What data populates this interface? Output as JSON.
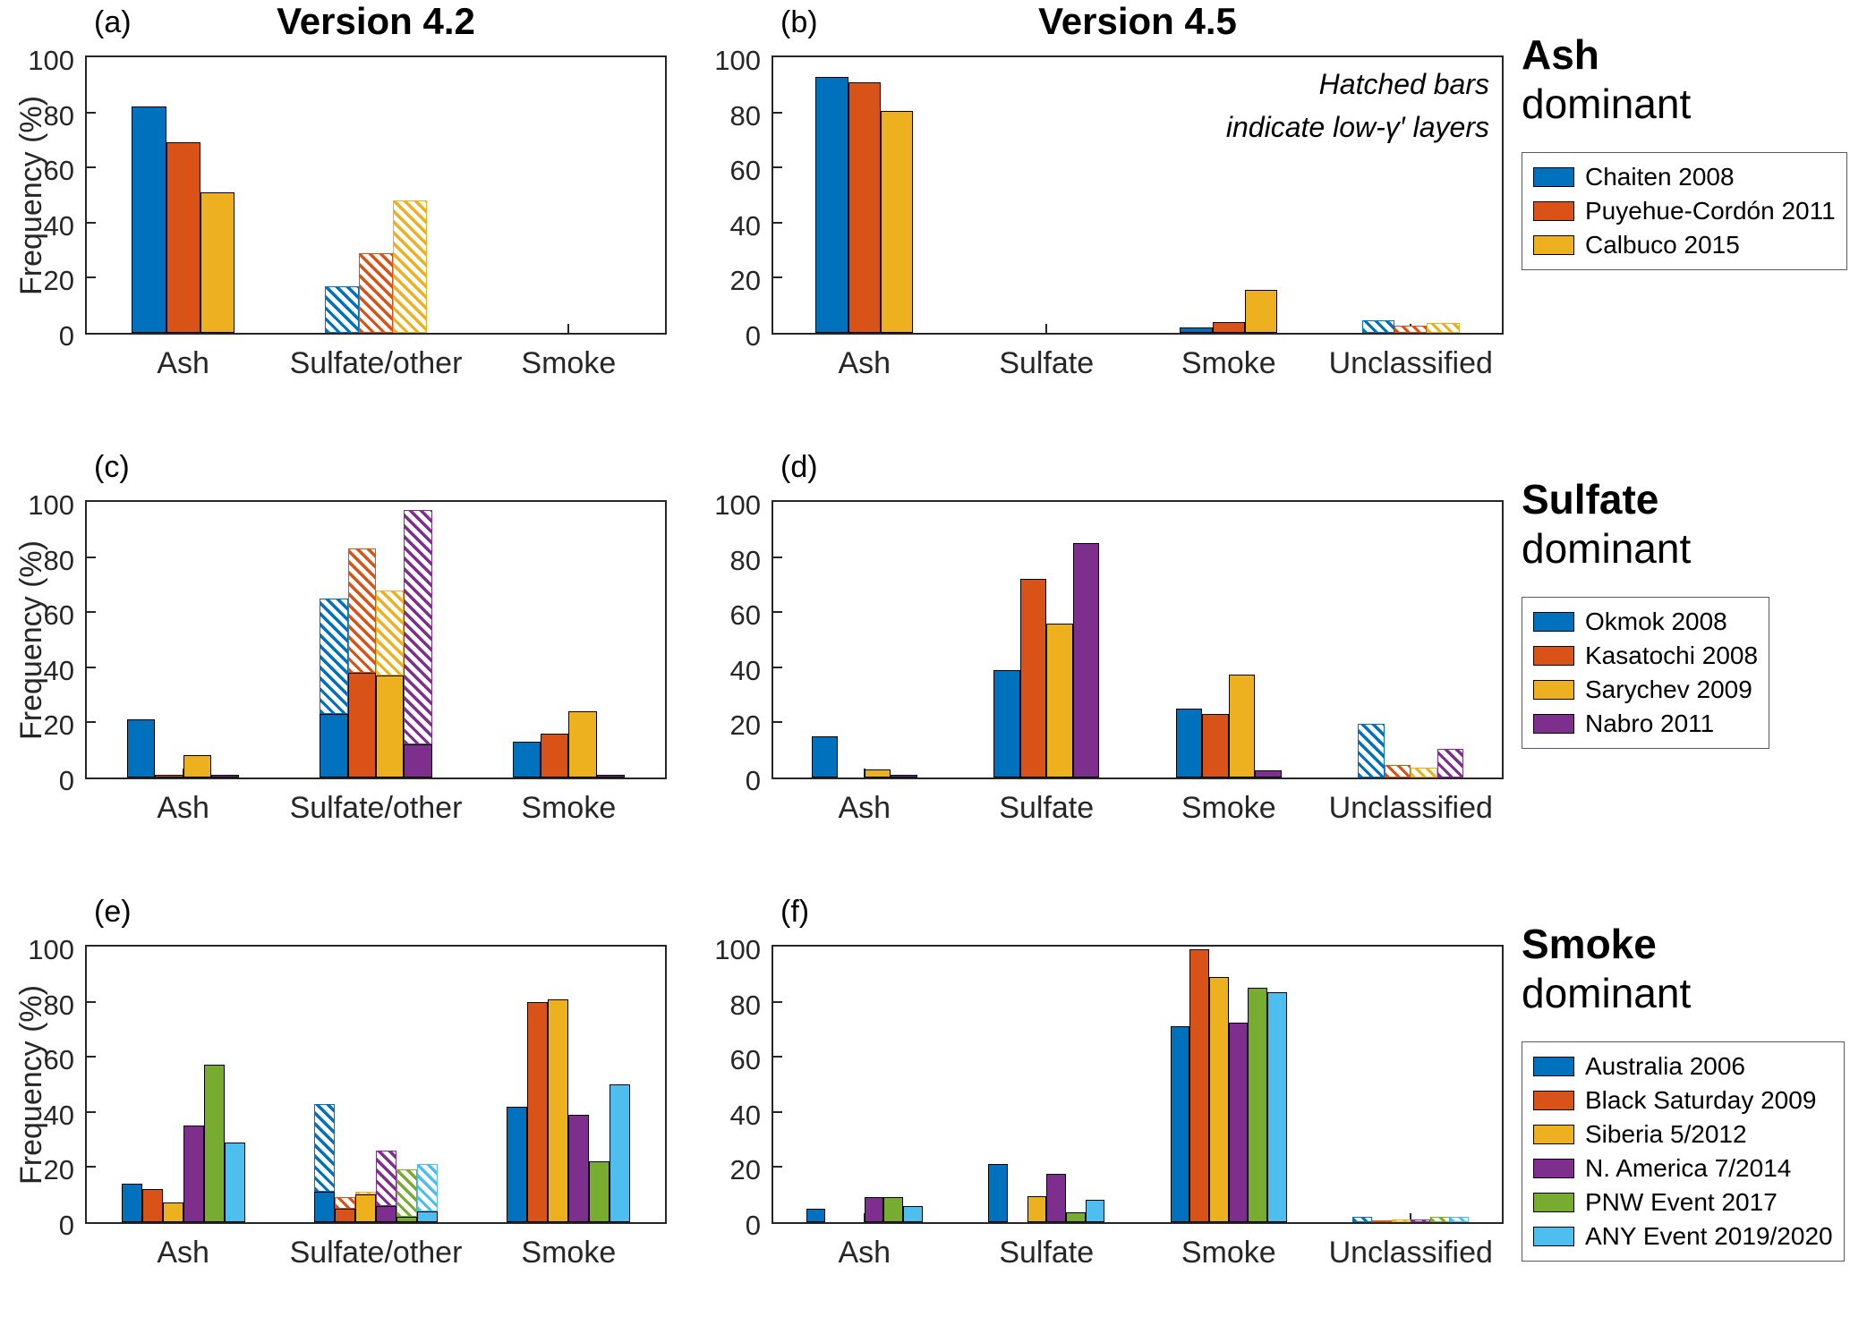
{
  "figure": {
    "ylabel": "Frequency (%)",
    "col_titles": [
      "Version 4.2",
      "Version 4.5"
    ]
  },
  "rows": [
    {
      "title_bold": "Ash",
      "title_rest": "dominant",
      "legend": [
        {
          "label": "Chaiten 2008",
          "color": "#0072BD"
        },
        {
          "label": "Puyehue-Cordón 2011",
          "color": "#D95319"
        },
        {
          "label": "Calbuco 2015",
          "color": "#EDB120"
        }
      ]
    },
    {
      "title_bold": "Sulfate",
      "title_rest": "dominant",
      "legend": [
        {
          "label": "Okmok 2008",
          "color": "#0072BD"
        },
        {
          "label": "Kasatochi 2008",
          "color": "#D95319"
        },
        {
          "label": "Sarychev 2009",
          "color": "#EDB120"
        },
        {
          "label": "Nabro 2011",
          "color": "#7E2F8E"
        }
      ]
    },
    {
      "title_bold": "Smoke",
      "title_rest": "dominant",
      "legend": [
        {
          "label": "Australia 2006",
          "color": "#0072BD"
        },
        {
          "label": "Black Saturday 2009",
          "color": "#D95319"
        },
        {
          "label": "Siberia 5/2012",
          "color": "#EDB120"
        },
        {
          "label": "N. America 7/2014",
          "color": "#7E2F8E"
        },
        {
          "label": "PNW Event 2017",
          "color": "#77AC30"
        },
        {
          "label": "ANY Event 2019/2020",
          "color": "#4DBEEE"
        }
      ]
    }
  ],
  "chart_data": [
    {
      "id": "a",
      "panel_tag": "(a)",
      "type": "bar",
      "categories": [
        "Ash",
        "Sulfate/other",
        "Smoke"
      ],
      "ylim": [
        0,
        100
      ],
      "yticks": [
        0,
        20,
        40,
        60,
        80,
        100
      ],
      "hatch_note": "hatched values indicate low-gamma-prime layers",
      "series": [
        {
          "name": "Chaiten 2008",
          "color": "#0072BD",
          "solid": [
            82,
            0,
            0
          ],
          "hatched": [
            0,
            17,
            0
          ]
        },
        {
          "name": "Puyehue-Cordón 2011",
          "color": "#D95319",
          "solid": [
            69,
            0,
            0
          ],
          "hatched": [
            0,
            29,
            0
          ]
        },
        {
          "name": "Calbuco 2015",
          "color": "#EDB120",
          "solid": [
            51,
            0,
            0
          ],
          "hatched": [
            0,
            48,
            0
          ]
        }
      ]
    },
    {
      "id": "b",
      "panel_tag": "(b)",
      "type": "bar",
      "categories": [
        "Ash",
        "Sulfate",
        "Smoke",
        "Unclassified"
      ],
      "ylim": [
        0,
        100
      ],
      "yticks": [
        0,
        20,
        40,
        60,
        80,
        100
      ],
      "annotation": [
        "Hatched bars",
        "indicate low-γ′ layers"
      ],
      "series": [
        {
          "name": "Chaiten 2008",
          "color": "#0072BD",
          "solid": [
            93,
            0,
            2,
            0
          ],
          "hatched": [
            0,
            0,
            0,
            4.5
          ]
        },
        {
          "name": "Puyehue-Cordón 2011",
          "color": "#D95319",
          "solid": [
            91,
            0,
            4,
            0
          ],
          "hatched": [
            0,
            0,
            0,
            2.5
          ]
        },
        {
          "name": "Calbuco 2015",
          "color": "#EDB120",
          "solid": [
            80.5,
            0,
            15.5,
            0
          ],
          "hatched": [
            0,
            0,
            0,
            3.5
          ]
        }
      ]
    },
    {
      "id": "c",
      "panel_tag": "(c)",
      "type": "bar",
      "categories": [
        "Ash",
        "Sulfate/other",
        "Smoke"
      ],
      "ylim": [
        0,
        100
      ],
      "yticks": [
        0,
        20,
        40,
        60,
        80,
        100
      ],
      "series": [
        {
          "name": "Okmok 2008",
          "color": "#0072BD",
          "solid": [
            21,
            23,
            13
          ],
          "hatched": [
            0,
            42,
            0
          ]
        },
        {
          "name": "Kasatochi 2008",
          "color": "#D95319",
          "solid": [
            1,
            38,
            16
          ],
          "hatched": [
            0,
            45,
            0
          ]
        },
        {
          "name": "Sarychev 2009",
          "color": "#EDB120",
          "solid": [
            8,
            37,
            24
          ],
          "hatched": [
            0,
            31,
            0
          ]
        },
        {
          "name": "Nabro 2011",
          "color": "#7E2F8E",
          "solid": [
            1,
            12,
            1
          ],
          "hatched": [
            0,
            85,
            0
          ]
        }
      ]
    },
    {
      "id": "d",
      "panel_tag": "(d)",
      "type": "bar",
      "categories": [
        "Ash",
        "Sulfate",
        "Smoke",
        "Unclassified"
      ],
      "ylim": [
        0,
        100
      ],
      "yticks": [
        0,
        20,
        40,
        60,
        80,
        100
      ],
      "series": [
        {
          "name": "Okmok 2008",
          "color": "#0072BD",
          "solid": [
            15,
            39,
            25,
            0
          ],
          "hatched": [
            0,
            0,
            0,
            19.5
          ]
        },
        {
          "name": "Kasatochi 2008",
          "color": "#D95319",
          "solid": [
            0,
            72,
            23,
            0
          ],
          "hatched": [
            0,
            0,
            0,
            4.5
          ]
        },
        {
          "name": "Sarychev 2009",
          "color": "#EDB120",
          "solid": [
            3,
            56,
            37.5,
            0
          ],
          "hatched": [
            0,
            0,
            0,
            3.5
          ]
        },
        {
          "name": "Nabro 2011",
          "color": "#7E2F8E",
          "solid": [
            1,
            85,
            2.5,
            0
          ],
          "hatched": [
            0,
            0,
            0,
            10.5
          ]
        }
      ]
    },
    {
      "id": "e",
      "panel_tag": "(e)",
      "type": "bar",
      "categories": [
        "Ash",
        "Sulfate/other",
        "Smoke"
      ],
      "ylim": [
        0,
        100
      ],
      "yticks": [
        0,
        20,
        40,
        60,
        80,
        100
      ],
      "series": [
        {
          "name": "Australia 2006",
          "color": "#0072BD",
          "solid": [
            14,
            11,
            42
          ],
          "hatched": [
            0,
            32,
            0
          ]
        },
        {
          "name": "Black Saturday 2009",
          "color": "#D95319",
          "solid": [
            12,
            5,
            80
          ],
          "hatched": [
            0,
            4,
            0
          ]
        },
        {
          "name": "Siberia 5/2012",
          "color": "#EDB120",
          "solid": [
            7,
            10,
            81
          ],
          "hatched": [
            0,
            1,
            0
          ]
        },
        {
          "name": "N. America 7/2014",
          "color": "#7E2F8E",
          "solid": [
            35,
            6,
            39
          ],
          "hatched": [
            0,
            20,
            0
          ]
        },
        {
          "name": "PNW Event 2017",
          "color": "#77AC30",
          "solid": [
            57,
            2,
            22
          ],
          "hatched": [
            0,
            17,
            0
          ]
        },
        {
          "name": "ANY Event 2019/2020",
          "color": "#4DBEEE",
          "solid": [
            29,
            4,
            50
          ],
          "hatched": [
            0,
            17,
            0
          ]
        }
      ]
    },
    {
      "id": "f",
      "panel_tag": "(f)",
      "type": "bar",
      "categories": [
        "Ash",
        "Sulfate",
        "Smoke",
        "Unclassified"
      ],
      "ylim": [
        0,
        100
      ],
      "yticks": [
        0,
        20,
        40,
        60,
        80,
        100
      ],
      "series": [
        {
          "name": "Australia 2006",
          "color": "#0072BD",
          "solid": [
            5,
            21,
            71,
            0
          ],
          "hatched": [
            0,
            0,
            0,
            2
          ]
        },
        {
          "name": "Black Saturday 2009",
          "color": "#D95319",
          "solid": [
            0,
            0,
            99,
            0
          ],
          "hatched": [
            0,
            0,
            0,
            0.5
          ]
        },
        {
          "name": "Siberia 5/2012",
          "color": "#EDB120",
          "solid": [
            0,
            9.5,
            89,
            0
          ],
          "hatched": [
            0,
            0,
            0,
            1
          ]
        },
        {
          "name": "N. America 7/2014",
          "color": "#7E2F8E",
          "solid": [
            9,
            17.5,
            72.5,
            0
          ],
          "hatched": [
            0,
            0,
            0,
            1
          ]
        },
        {
          "name": "PNW Event 2017",
          "color": "#77AC30",
          "solid": [
            9,
            3.5,
            85,
            0
          ],
          "hatched": [
            0,
            0,
            0,
            2
          ]
        },
        {
          "name": "ANY Event 2019/2020",
          "color": "#4DBEEE",
          "solid": [
            6,
            8,
            83.5,
            0
          ],
          "hatched": [
            0,
            0,
            0,
            2
          ]
        }
      ]
    }
  ]
}
